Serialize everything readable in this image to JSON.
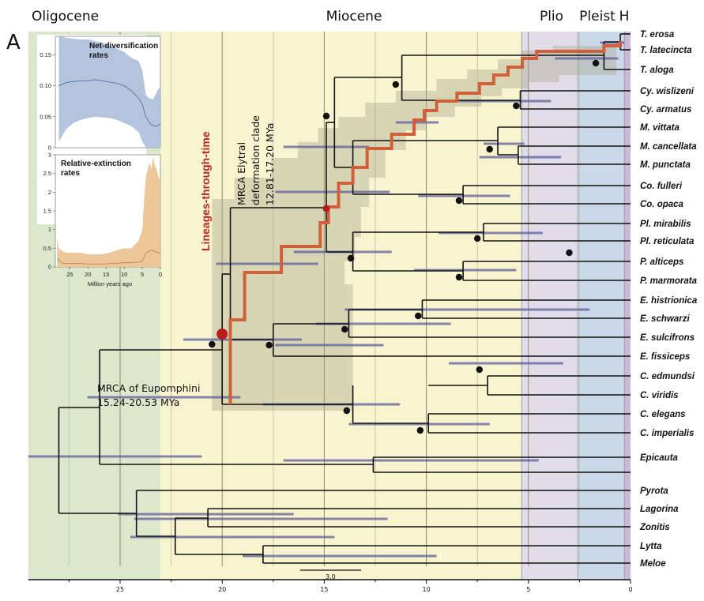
{
  "chart_data": {
    "type": "tree",
    "panel_label": "A",
    "xlabel": "",
    "x_axis": {
      "unit": "Million years ago",
      "range": [
        29.5,
        0
      ],
      "ticks": [
        25,
        20,
        15,
        10,
        5,
        0
      ],
      "reversed": true
    },
    "epochs": [
      {
        "name": "Oligocene",
        "start": 29.5,
        "end": 23.03,
        "color": "#dce8cc"
      },
      {
        "name": "Miocene",
        "start": 23.03,
        "end": 5.33,
        "color": "#f7f4cf"
      },
      {
        "name": "Plio",
        "start": 5.33,
        "end": 2.58,
        "color": "#e0dcea"
      },
      {
        "name": "Pleist",
        "start": 2.58,
        "end": 0.3,
        "color": "#cbd8ea"
      },
      {
        "name": "H",
        "start": 0.3,
        "end": 0.0,
        "color": "#cdb8d6"
      }
    ],
    "gridlines": [
      27.5,
      25,
      22.5,
      20,
      17.5,
      15,
      12.5,
      10,
      7.5,
      5,
      2.5
    ],
    "scale_bar": {
      "label": "3.0",
      "length_my": 3.0
    },
    "taxa": [
      "T. erosa",
      "T. latecincta",
      "T. aloga",
      "Cy. wislizeni",
      "Cy. armatus",
      "M. vittata",
      "M. cancellata",
      "M. punctata",
      "Co. fulleri",
      "Co. opaca",
      "Pl. mirabilis",
      "Pl. reticulata",
      "P. alticeps",
      "P. marmorata",
      "E. histrionica",
      "E. schwarzi",
      "E. sulcifrons",
      "E. fissiceps",
      "C. edmundsi",
      "C. viridis",
      "C. elegans",
      "C. imperialis",
      "Epicauta",
      "Pyrota",
      "Lagorina",
      "Zonitis",
      "Lytta",
      "Meloe"
    ],
    "annotations": [
      {
        "text": [
          "MRCA of Eupomphini",
          "15.24-20.53 MYa"
        ],
        "node_age": 20.0
      },
      {
        "text": [
          "MRCA Elytral",
          "deformation clade",
          "12.81-17.20 MYa"
        ],
        "node_age": 14.9
      },
      {
        "text": [
          "Lineages-through-time"
        ],
        "color": "#b52a22"
      }
    ],
    "ltt_series": {
      "name": "Lineages-through-time",
      "color": "#d0603a",
      "steps": [
        [
          20.0,
          1
        ],
        [
          19.6,
          2
        ],
        [
          19.6,
          3
        ],
        [
          18.0,
          4
        ],
        [
          16.3,
          5
        ],
        [
          15.0,
          6
        ],
        [
          14.9,
          7
        ],
        [
          13.9,
          8
        ],
        [
          13.6,
          9
        ],
        [
          13.0,
          10
        ],
        [
          11.6,
          11
        ],
        [
          10.5,
          12
        ],
        [
          10.3,
          13
        ],
        [
          10.0,
          14
        ],
        [
          9.3,
          15
        ],
        [
          8.3,
          16
        ],
        [
          8.2,
          17
        ],
        [
          7.3,
          18
        ],
        [
          7.0,
          19
        ],
        [
          6.5,
          20
        ],
        [
          5.9,
          21
        ],
        [
          5.5,
          22
        ],
        [
          5.3,
          23
        ],
        [
          4.8,
          24
        ],
        [
          3.5,
          25
        ],
        [
          1.2,
          26
        ],
        [
          0.5,
          27
        ]
      ]
    },
    "inset_net_diversification": {
      "title": [
        "Net-diversification",
        "rates"
      ],
      "ylim": [
        0,
        0.18
      ],
      "yticks": [
        0,
        0.05,
        0.1,
        0.15
      ],
      "ytick_labels": [
        "0",
        "0.05",
        "0.10",
        "0.15"
      ],
      "color": "#b3c4dc",
      "x": [
        28,
        26,
        24,
        22,
        20,
        18,
        16,
        14,
        12,
        10,
        8,
        6,
        5,
        4,
        3,
        2,
        1,
        0
      ],
      "upper": [
        0.18,
        0.178,
        0.176,
        0.175,
        0.175,
        0.172,
        0.17,
        0.165,
        0.16,
        0.155,
        0.145,
        0.14,
        0.125,
        0.085,
        0.08,
        0.078,
        0.09,
        0.1
      ],
      "median": [
        0.1,
        0.105,
        0.107,
        0.108,
        0.108,
        0.11,
        0.108,
        0.106,
        0.104,
        0.1,
        0.092,
        0.08,
        0.07,
        0.05,
        0.04,
        0.035,
        0.035,
        0.038
      ],
      "lower": [
        0.01,
        0.03,
        0.04,
        0.045,
        0.048,
        0.05,
        0.049,
        0.048,
        0.045,
        0.04,
        0.035,
        0.025,
        0.01,
        0.0,
        0.0,
        0.0,
        0.0,
        0.0
      ]
    },
    "inset_relative_extinction": {
      "title": [
        "Relative-extinction",
        "rates"
      ],
      "ylim": [
        0,
        3
      ],
      "yticks": [
        0,
        0.5,
        1,
        1.5,
        2,
        2.5,
        3
      ],
      "ytick_labels": [
        "0",
        "0.5",
        "1",
        "1.5",
        "2",
        "2.5",
        "3"
      ],
      "xticks": [
        25,
        20,
        15,
        10,
        5,
        0
      ],
      "xlabel": "Million years ago",
      "color": "#ecc79a",
      "x": [
        28.5,
        28,
        27,
        26,
        24,
        22,
        20,
        18,
        16,
        14,
        12,
        10,
        8,
        6,
        5,
        4.5,
        4,
        3,
        2.5,
        2,
        1.5,
        1,
        0.5,
        0
      ],
      "upper": [
        0.8,
        0.5,
        0.42,
        0.38,
        0.38,
        0.38,
        0.34,
        0.34,
        0.34,
        0.38,
        0.45,
        0.5,
        0.5,
        0.7,
        1.0,
        1.8,
        2.4,
        2.8,
        2.6,
        2.95,
        2.7,
        2.6,
        2.4,
        2.3
      ],
      "median": [
        0.22,
        0.18,
        0.1,
        0.09,
        0.09,
        0.09,
        0.08,
        0.08,
        0.08,
        0.09,
        0.1,
        0.11,
        0.12,
        0.13,
        0.15,
        0.25,
        0.38,
        0.42,
        0.45,
        0.44,
        0.4,
        0.4,
        0.38,
        0.37
      ]
    }
  }
}
